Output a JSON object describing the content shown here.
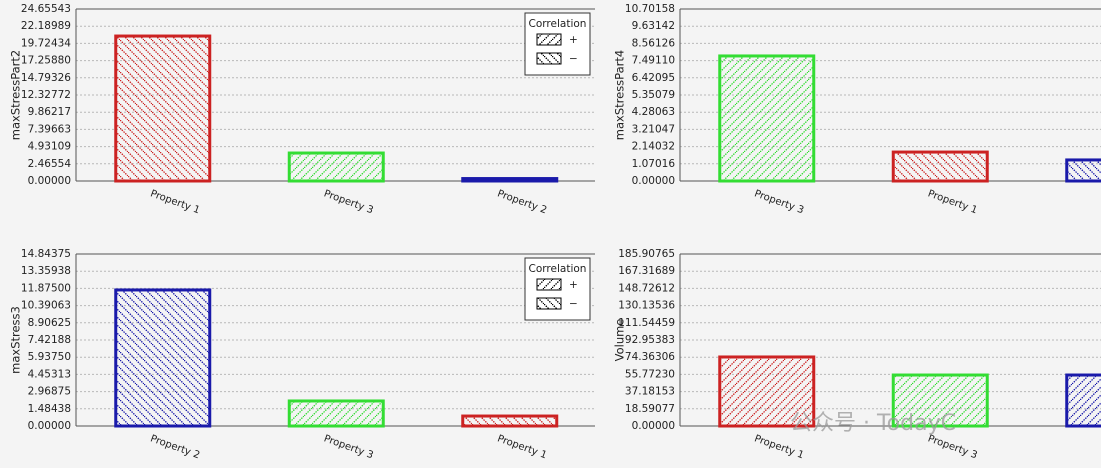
{
  "chart_data": [
    {
      "type": "bar",
      "y_label": "maxStressPart2",
      "categories": [
        "Property 1",
        "Property 3",
        "Property 2"
      ],
      "values": [
        20.78,
        4.01,
        0.35
      ],
      "colors": [
        "#cc2222",
        "#33dd33",
        "#1a1aaa"
      ],
      "hatch": [
        "\\",
        "/",
        "\\"
      ],
      "ylim": [
        0,
        24.65543
      ],
      "yticks": [
        {
          "value": 0,
          "label": "0.00000"
        },
        {
          "value": 2.46554,
          "label": "2.46554"
        },
        {
          "value": 4.93109,
          "label": "4.93109"
        },
        {
          "value": 7.39663,
          "label": "7.39663"
        },
        {
          "value": 9.86217,
          "label": "9.86217"
        },
        {
          "value": 12.32772,
          "label": "12.32772"
        },
        {
          "value": 14.79326,
          "label": "14.79326"
        },
        {
          "value": 17.2588,
          "label": "17.25880"
        },
        {
          "value": 19.72434,
          "label": "19.72434"
        },
        {
          "value": 22.18989,
          "label": "22.18989"
        },
        {
          "value": 24.65543,
          "label": "24.65543"
        }
      ],
      "grid": true,
      "legend": {
        "title": "Correlation",
        "loc": "upper right",
        "entries": [
          {
            "label": "+",
            "hatch": "/"
          },
          {
            "label": "−",
            "hatch": "\\"
          }
        ]
      }
    },
    {
      "type": "bar",
      "y_label": "maxStressPart4",
      "categories": [
        "Property 3",
        "Property 1",
        null
      ],
      "values": [
        7.78,
        1.8,
        1.31
      ],
      "colors": [
        "#33dd33",
        "#cc2222",
        "#1a1aaa"
      ],
      "hatch": [
        "/",
        "\\",
        "\\"
      ],
      "ylim": [
        0,
        10.70158
      ],
      "yticks": [
        {
          "value": 0,
          "label": "0.00000"
        },
        {
          "value": 1.07016,
          "label": "1.07016"
        },
        {
          "value": 2.14032,
          "label": "2.14032"
        },
        {
          "value": 3.21047,
          "label": "3.21047"
        },
        {
          "value": 4.28063,
          "label": "4.28063"
        },
        {
          "value": 5.35079,
          "label": "5.35079"
        },
        {
          "value": 6.42095,
          "label": "6.42095"
        },
        {
          "value": 7.4911,
          "label": "7.49110"
        },
        {
          "value": 8.56126,
          "label": "8.56126"
        },
        {
          "value": 9.63142,
          "label": "9.63142"
        },
        {
          "value": 10.70158,
          "label": "10.70158"
        }
      ],
      "grid": true
    },
    {
      "type": "bar",
      "y_label": "maxStress3",
      "categories": [
        "Property 2",
        "Property 3",
        "Property 1"
      ],
      "values": [
        11.74,
        2.16,
        0.86
      ],
      "colors": [
        "#1a1aaa",
        "#33dd33",
        "#cc2222"
      ],
      "hatch": [
        "\\",
        "/",
        "\\"
      ],
      "ylim": [
        0,
        14.84375
      ],
      "yticks": [
        {
          "value": 0,
          "label": "0.00000"
        },
        {
          "value": 1.48438,
          "label": "1.48438"
        },
        {
          "value": 2.96875,
          "label": "2.96875"
        },
        {
          "value": 4.45313,
          "label": "4.45313"
        },
        {
          "value": 5.9375,
          "label": "5.93750"
        },
        {
          "value": 7.42188,
          "label": "7.42188"
        },
        {
          "value": 8.90625,
          "label": "8.90625"
        },
        {
          "value": 10.39063,
          "label": "10.39063"
        },
        {
          "value": 11.875,
          "label": "11.87500"
        },
        {
          "value": 13.35938,
          "label": "13.35938"
        },
        {
          "value": 14.84375,
          "label": "14.84375"
        }
      ],
      "grid": true,
      "legend": {
        "title": "Correlation",
        "loc": "upper right",
        "entries": [
          {
            "label": "+",
            "hatch": "/"
          },
          {
            "label": "−",
            "hatch": "\\"
          }
        ]
      }
    },
    {
      "type": "bar",
      "y_label": "Volume",
      "categories": [
        "Property 1",
        "Property 3",
        null
      ],
      "values": [
        74.6,
        55.1,
        55.1
      ],
      "colors": [
        "#cc2222",
        "#33dd33",
        "#1a1aaa"
      ],
      "hatch": [
        "/",
        "/",
        "/"
      ],
      "ylim": [
        0,
        185.90765
      ],
      "yticks": [
        {
          "value": 0,
          "label": "0.00000"
        },
        {
          "value": 18.59077,
          "label": "18.59077"
        },
        {
          "value": 37.18153,
          "label": "37.18153"
        },
        {
          "value": 55.7723,
          "label": "55.77230"
        },
        {
          "value": 74.36306,
          "label": "74.36306"
        },
        {
          "value": 92.95383,
          "label": "92.95383"
        },
        {
          "value": 111.54459,
          "label": "111.54459"
        },
        {
          "value": 130.13536,
          "label": "130.13536"
        },
        {
          "value": 148.72612,
          "label": "148.72612"
        },
        {
          "value": 167.31689,
          "label": "167.31689"
        },
        {
          "value": 185.90765,
          "label": "185.90765"
        }
      ],
      "grid": true
    }
  ],
  "watermark": "公众号 · TodayC"
}
